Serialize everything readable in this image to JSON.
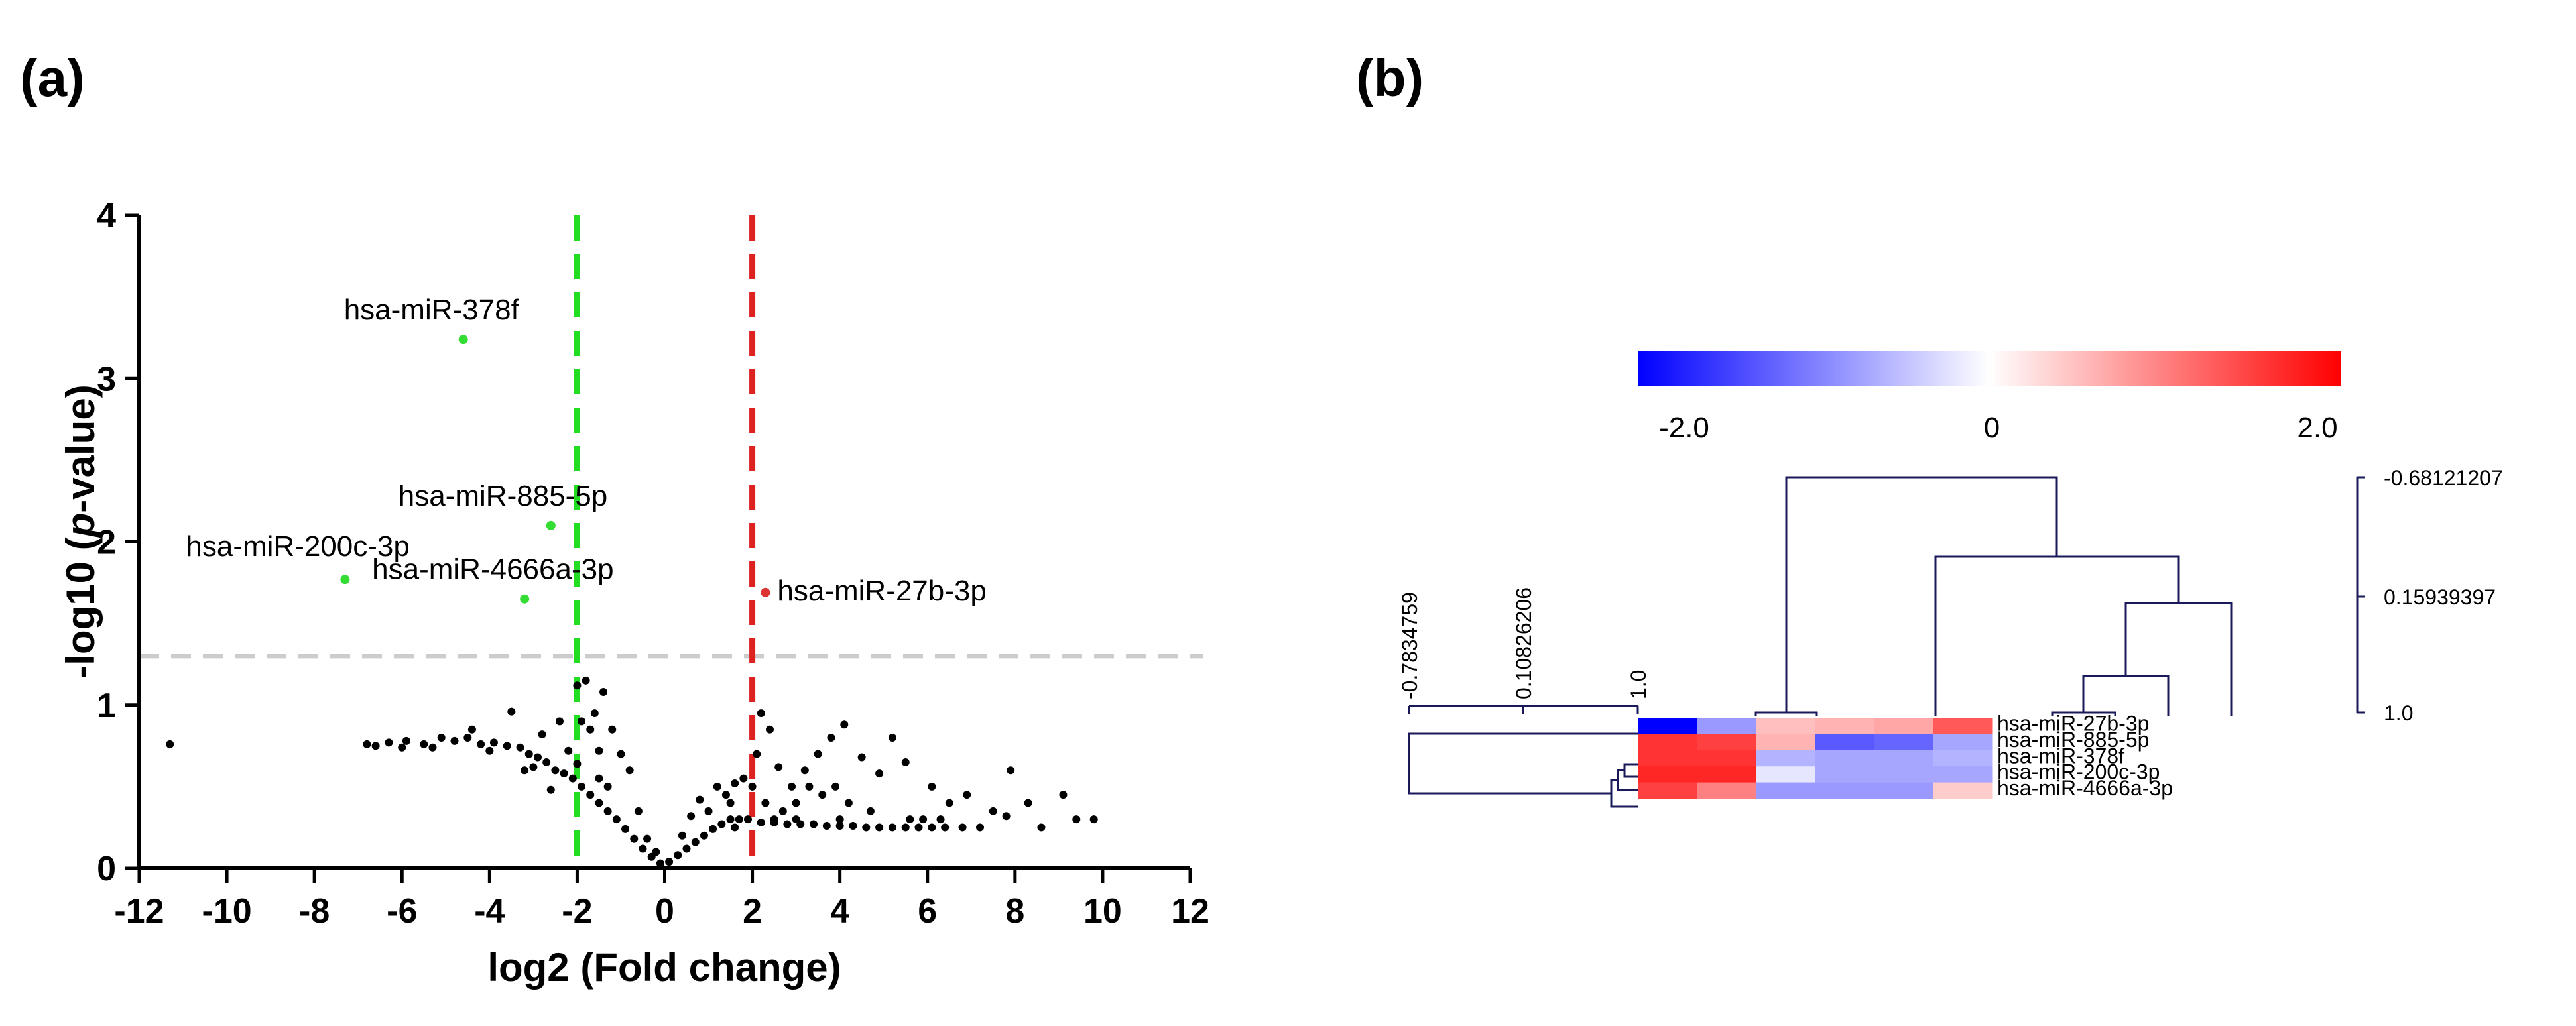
{
  "panels": {
    "a_label": "(a)",
    "b_label": "(b)"
  },
  "chart_data": [
    {
      "type": "scatter",
      "title": "",
      "xlabel": "log2 (Fold change)",
      "ylabel_prefix": "-log10 (",
      "ylabel_italic": "p",
      "ylabel_suffix": "-value)",
      "xlim": [
        -12,
        12
      ],
      "ylim": [
        0,
        4
      ],
      "xticks": [
        "-12",
        "-10",
        "-8",
        "-6",
        "-4",
        "-2",
        "0",
        "2",
        "4",
        "6",
        "8",
        "10",
        "12"
      ],
      "yticks": [
        "0",
        "1",
        "2",
        "3",
        "4"
      ],
      "thresholds": {
        "fold_change_low": -2,
        "fold_change_high": 2,
        "pvalue_line": 1.3,
        "colors": {
          "low": "#22dd22",
          "high": "#dd2222",
          "pvalue": "#cccccc"
        }
      },
      "highlighted": [
        {
          "label": "hsa-miR-378f",
          "x": -4.6,
          "y": 3.24,
          "color": "#33dd33"
        },
        {
          "label": "hsa-miR-885-5p",
          "x": -2.6,
          "y": 2.1,
          "color": "#33dd33"
        },
        {
          "label": "hsa-miR-200c-3p",
          "x": -7.3,
          "y": 1.77,
          "color": "#33dd33"
        },
        {
          "label": "hsa-miR-4666a-3p",
          "x": -3.2,
          "y": 1.65,
          "color": "#33dd33"
        },
        {
          "label": "hsa-miR-27b-3p",
          "x": 2.3,
          "y": 1.69,
          "color": "#dd3333"
        }
      ],
      "background_points": [
        [
          -11.3,
          0.76
        ],
        [
          -6.8,
          0.76
        ],
        [
          -6.3,
          0.77
        ],
        [
          -5.9,
          0.78
        ],
        [
          -5.5,
          0.76
        ],
        [
          -5.1,
          0.8
        ],
        [
          -4.8,
          0.78
        ],
        [
          -4.5,
          0.8
        ],
        [
          -4.2,
          0.76
        ],
        [
          -3.9,
          0.77
        ],
        [
          -3.6,
          0.75
        ],
        [
          -3.3,
          0.74
        ],
        [
          -3.1,
          0.7
        ],
        [
          -2.9,
          0.68
        ],
        [
          -2.7,
          0.65
        ],
        [
          -2.5,
          0.6
        ],
        [
          -2.3,
          0.58
        ],
        [
          -2.1,
          0.55
        ],
        [
          -1.9,
          0.5
        ],
        [
          -1.7,
          0.45
        ],
        [
          -1.5,
          0.4
        ],
        [
          -1.3,
          0.35
        ],
        [
          -1.1,
          0.3
        ],
        [
          -0.9,
          0.24
        ],
        [
          -0.7,
          0.18
        ],
        [
          -0.5,
          0.12
        ],
        [
          -0.3,
          0.07
        ],
        [
          -0.1,
          0.03
        ],
        [
          0.1,
          0.04
        ],
        [
          0.3,
          0.08
        ],
        [
          0.5,
          0.12
        ],
        [
          0.7,
          0.16
        ],
        [
          0.9,
          0.2
        ],
        [
          1.1,
          0.24
        ],
        [
          1.3,
          0.27
        ],
        [
          1.5,
          0.3
        ],
        [
          1.7,
          0.3
        ],
        [
          1.9,
          0.3
        ],
        [
          2.2,
          0.28
        ],
        [
          2.5,
          0.28
        ],
        [
          2.8,
          0.27
        ],
        [
          3.1,
          0.27
        ],
        [
          3.4,
          0.27
        ],
        [
          3.7,
          0.26
        ],
        [
          4.0,
          0.26
        ],
        [
          4.3,
          0.26
        ],
        [
          4.6,
          0.25
        ],
        [
          4.9,
          0.25
        ],
        [
          5.2,
          0.25
        ],
        [
          5.5,
          0.25
        ],
        [
          5.8,
          0.25
        ],
        [
          6.1,
          0.25
        ],
        [
          6.4,
          0.25
        ],
        [
          6.8,
          0.25
        ],
        [
          7.2,
          0.25
        ],
        [
          -1.6,
          0.95
        ],
        [
          -1.4,
          1.08
        ],
        [
          -1.8,
          1.15
        ],
        [
          -1.2,
          0.85
        ],
        [
          -0.8,
          0.6
        ],
        [
          -1.0,
          0.7
        ],
        [
          -2.4,
          0.9
        ],
        [
          -3.5,
          0.96
        ],
        [
          -2.8,
          0.82
        ],
        [
          -2.2,
          0.72
        ],
        [
          -4.4,
          0.85
        ],
        [
          -3.0,
          0.62
        ],
        [
          -2.0,
          0.64
        ],
        [
          -1.5,
          0.55
        ],
        [
          -0.6,
          0.35
        ],
        [
          0.6,
          0.32
        ],
        [
          0.8,
          0.42
        ],
        [
          1.2,
          0.5
        ],
        [
          1.4,
          0.45
        ],
        [
          1.6,
          0.52
        ],
        [
          1.8,
          0.55
        ],
        [
          2.1,
          0.7
        ],
        [
          2.4,
          0.85
        ],
        [
          2.6,
          0.62
        ],
        [
          2.9,
          0.5
        ],
        [
          3.2,
          0.6
        ],
        [
          3.5,
          0.7
        ],
        [
          3.8,
          0.8
        ],
        [
          4.1,
          0.88
        ],
        [
          4.5,
          0.68
        ],
        [
          4.9,
          0.58
        ],
        [
          5.2,
          0.8
        ],
        [
          5.5,
          0.65
        ],
        [
          6.1,
          0.5
        ],
        [
          6.5,
          0.4
        ],
        [
          6.9,
          0.45
        ],
        [
          7.5,
          0.35
        ],
        [
          7.9,
          0.6
        ],
        [
          8.3,
          0.4
        ],
        [
          9.1,
          0.45
        ],
        [
          9.8,
          0.3
        ],
        [
          2.3,
          0.4
        ],
        [
          2.7,
          0.35
        ],
        [
          3.0,
          0.4
        ],
        [
          3.3,
          0.5
        ],
        [
          3.6,
          0.45
        ],
        [
          4.2,
          0.4
        ],
        [
          4.7,
          0.35
        ],
        [
          5.6,
          0.3
        ],
        [
          6.3,
          0.3
        ],
        [
          7.8,
          0.32
        ],
        [
          9.4,
          0.3
        ],
        [
          1.5,
          0.4
        ],
        [
          1.0,
          0.35
        ],
        [
          0.4,
          0.2
        ],
        [
          -0.4,
          0.18
        ],
        [
          -0.2,
          0.1
        ],
        [
          -2.6,
          0.48
        ],
        [
          -3.2,
          0.6
        ],
        [
          -4.0,
          0.72
        ],
        [
          -5.3,
          0.74
        ],
        [
          -6.0,
          0.74
        ],
        [
          -6.6,
          0.75
        ],
        [
          -1.9,
          0.9
        ],
        [
          -1.3,
          0.5
        ],
        [
          1.6,
          0.25
        ],
        [
          2.0,
          0.5
        ],
        [
          2.2,
          0.95
        ],
        [
          3.9,
          0.5
        ],
        [
          2.5,
          0.3
        ],
        [
          3.0,
          0.3
        ],
        [
          -2.0,
          1.12
        ],
        [
          -1.7,
          0.85
        ],
        [
          -1.5,
          0.72
        ],
        [
          5.9,
          0.3
        ],
        [
          8.6,
          0.25
        ],
        [
          4.0,
          0.3
        ]
      ]
    },
    {
      "type": "heatmap",
      "colorbar": {
        "min": "-2.0",
        "mid": "0",
        "max": "2.0",
        "colors": [
          "#0000ff",
          "#ffffff",
          "#ff0000"
        ]
      },
      "rows": [
        "hsa-miR-27b-3p",
        "hsa-miR-885-5p",
        "hsa-miR-378f",
        "hsa-miR-200c-3p",
        "hsa-miR-4666a-3p"
      ],
      "values": [
        [
          -2.0,
          -0.8,
          0.5,
          0.6,
          0.7,
          1.3
        ],
        [
          1.6,
          1.5,
          0.6,
          -1.3,
          -1.2,
          -0.7
        ],
        [
          1.6,
          1.6,
          -0.6,
          -0.7,
          -0.7,
          -0.6
        ],
        [
          1.7,
          1.7,
          -0.2,
          -0.7,
          -0.7,
          -0.7
        ],
        [
          1.5,
          1.0,
          -0.8,
          -0.8,
          -0.8,
          0.4
        ]
      ],
      "column_dendrogram_labels": [
        "-0.68121207",
        "0.15939397",
        "1.0"
      ],
      "row_dendrogram_labels": [
        "-0.7834759",
        "0.10826206",
        "1.0"
      ]
    }
  ]
}
